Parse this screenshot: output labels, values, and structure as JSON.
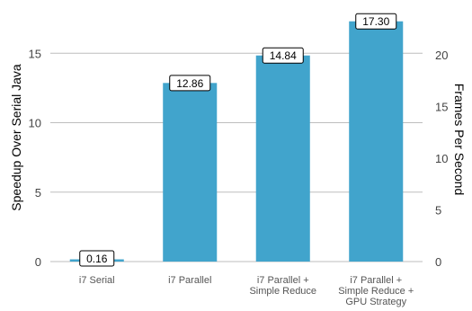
{
  "chart_data": {
    "type": "bar",
    "categories": [
      [
        "i7 Serial"
      ],
      [
        "i7 Parallel"
      ],
      [
        "i7 Parallel +",
        "Simple Reduce"
      ],
      [
        "i7 Parallel +",
        "Simple Reduce +",
        "GPU Strategy"
      ]
    ],
    "values": [
      0.16,
      12.86,
      14.84,
      17.3
    ],
    "value_labels": [
      "0.16",
      "12.86",
      "14.84",
      "17.30"
    ],
    "title": "",
    "xlabel": "",
    "ylabel": "Speedup Over Serial Java",
    "y2label": "Frames Per Second",
    "ylim": [
      0,
      17.8
    ],
    "yticks": [
      0,
      5,
      10,
      15
    ],
    "y2lim": [
      0,
      23.9
    ],
    "y2ticks": [
      0,
      5,
      10,
      15,
      20
    ],
    "grid": true,
    "bar_color": "#41a4cc",
    "grid_color": "#bdbdbd"
  }
}
